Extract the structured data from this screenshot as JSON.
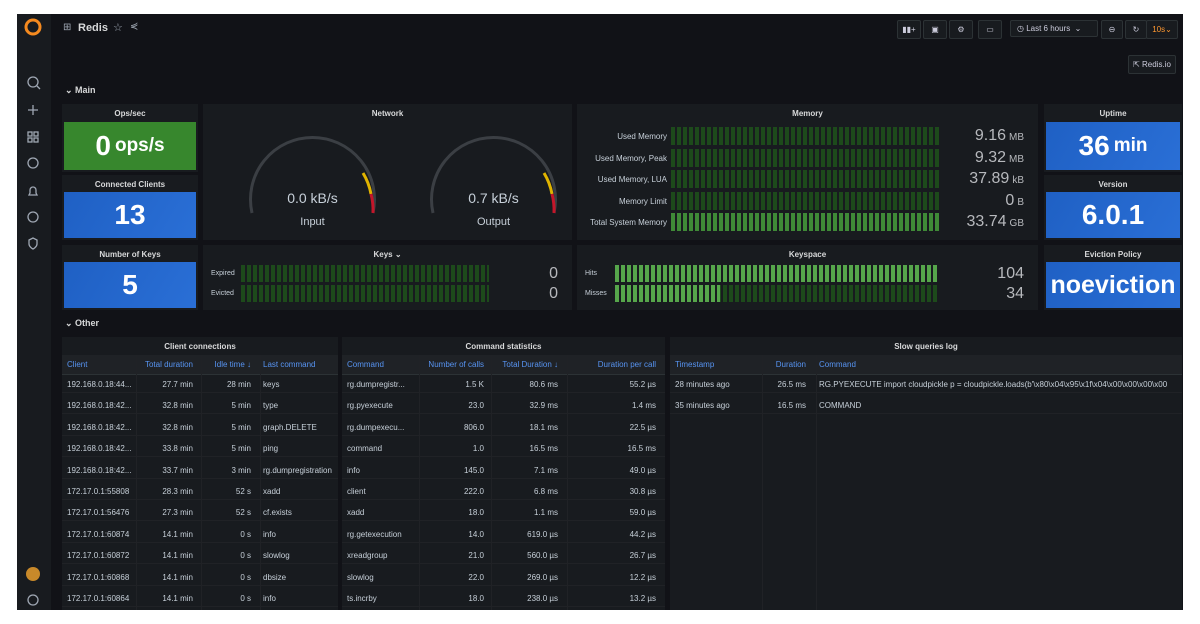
{
  "header": {
    "title": "Redis",
    "time_range": "Last 6 hours",
    "refresh": "10s",
    "link": "Redis.io"
  },
  "rows": [
    "Main",
    "Other"
  ],
  "stats": {
    "ops": {
      "title": "Ops/sec",
      "value": "0",
      "unit": "ops/s"
    },
    "clients": {
      "title": "Connected Clients",
      "value": "13"
    },
    "keys": {
      "title": "Number of Keys",
      "value": "5"
    },
    "uptime": {
      "title": "Uptime",
      "value": "36",
      "unit": "min"
    },
    "version": {
      "title": "Version",
      "value": "6.0.1"
    },
    "eviction": {
      "title": "Eviction Policy",
      "value": "noeviction"
    }
  },
  "network": {
    "title": "Network",
    "gauges": [
      {
        "value": "0.0 kB/s",
        "label": "Input"
      },
      {
        "value": "0.7 kB/s",
        "label": "Output"
      }
    ]
  },
  "memory": {
    "title": "Memory",
    "rows": [
      {
        "label": "Used Memory",
        "value": "9.16",
        "unit": "MB"
      },
      {
        "label": "Used Memory, Peak",
        "value": "9.32",
        "unit": "MB"
      },
      {
        "label": "Used Memory, LUA",
        "value": "37.89",
        "unit": "kB"
      },
      {
        "label": "Memory Limit",
        "value": "0",
        "unit": "B"
      },
      {
        "label": "Total System Memory",
        "value": "33.74",
        "unit": "GB"
      }
    ]
  },
  "keys": {
    "title": "Keys",
    "rows": [
      {
        "label": "Expired",
        "value": "0"
      },
      {
        "label": "Evicted",
        "value": "0"
      }
    ]
  },
  "keyspace": {
    "title": "Keyspace",
    "rows": [
      {
        "label": "Hits",
        "value": "104"
      },
      {
        "label": "Misses",
        "value": "34"
      }
    ]
  },
  "tables": [
    {
      "title": "Client connections",
      "columns": [
        "Client",
        "Total duration",
        "Idle time ↓",
        "Last command"
      ],
      "rows": [
        [
          "192.168.0.18:44...",
          "27.7 min",
          "28 min",
          "keys"
        ],
        [
          "192.168.0.18:42...",
          "32.8 min",
          "5 min",
          "type"
        ],
        [
          "192.168.0.18:42...",
          "32.8 min",
          "5 min",
          "graph.DELETE"
        ],
        [
          "192.168.0.18:42...",
          "33.8 min",
          "5 min",
          "ping"
        ],
        [
          "192.168.0.18:42...",
          "33.7 min",
          "3 min",
          "rg.dumpregistration"
        ],
        [
          "172.17.0.1:55808",
          "28.3 min",
          "52 s",
          "xadd"
        ],
        [
          "172.17.0.1:56476",
          "27.3 min",
          "52 s",
          "cf.exists"
        ],
        [
          "172.17.0.1:60874",
          "14.1 min",
          "0 s",
          "info"
        ],
        [
          "172.17.0.1:60872",
          "14.1 min",
          "0 s",
          "slowlog"
        ],
        [
          "172.17.0.1:60868",
          "14.1 min",
          "0 s",
          "dbsize"
        ],
        [
          "172.17.0.1:60864",
          "14.1 min",
          "0 s",
          "info"
        ]
      ]
    },
    {
      "title": "Command statistics",
      "columns": [
        "Command",
        "Number of calls",
        "Total Duration ↓",
        "Duration per call"
      ],
      "rows": [
        [
          "rg.dumpregistr...",
          "1.5 K",
          "80.6 ms",
          "55.2 µs"
        ],
        [
          "rg.pyexecute",
          "23.0",
          "32.9 ms",
          "1.4 ms"
        ],
        [
          "rg.dumpexecu...",
          "806.0",
          "18.1 ms",
          "22.5 µs"
        ],
        [
          "command",
          "1.0",
          "16.5 ms",
          "16.5 ms"
        ],
        [
          "info",
          "145.0",
          "7.1 ms",
          "49.0 µs"
        ],
        [
          "client",
          "222.0",
          "6.8 ms",
          "30.8 µs"
        ],
        [
          "xadd",
          "18.0",
          "1.1 ms",
          "59.0 µs"
        ],
        [
          "rg.getexecution",
          "14.0",
          "619.0 µs",
          "44.2 µs"
        ],
        [
          "xreadgroup",
          "21.0",
          "560.0 µs",
          "26.7 µs"
        ],
        [
          "slowlog",
          "22.0",
          "269.0 µs",
          "12.2 µs"
        ],
        [
          "ts.incrby",
          "18.0",
          "238.0 µs",
          "13.2 µs"
        ]
      ]
    },
    {
      "title": "Slow queries log",
      "columns": [
        "Timestamp",
        "Duration",
        "Command"
      ],
      "rows": [
        [
          "28 minutes ago",
          "26.5 ms",
          "RG.PYEXECUTE import cloudpickle p = cloudpickle.loads(b'\\x80\\x04\\x95\\x1f\\x04\\x00\\x00\\x00\\x00"
        ],
        [
          "35 minutes ago",
          "16.5 ms",
          "COMMAND"
        ]
      ]
    }
  ]
}
